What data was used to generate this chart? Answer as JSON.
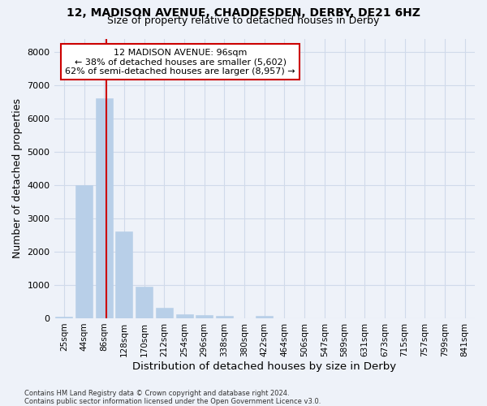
{
  "title_line1": "12, MADISON AVENUE, CHADDESDEN, DERBY, DE21 6HZ",
  "title_line2": "Size of property relative to detached houses in Derby",
  "xlabel": "Distribution of detached houses by size in Derby",
  "ylabel": "Number of detached properties",
  "bar_labels": [
    "25sqm",
    "44sqm",
    "86sqm",
    "128sqm",
    "170sqm",
    "212sqm",
    "254sqm",
    "296sqm",
    "338sqm",
    "380sqm",
    "422sqm",
    "464sqm",
    "506sqm",
    "547sqm",
    "589sqm",
    "631sqm",
    "673sqm",
    "715sqm",
    "757sqm",
    "799sqm",
    "841sqm"
  ],
  "bar_values": [
    55,
    4000,
    6600,
    2600,
    950,
    320,
    115,
    100,
    60,
    0,
    60,
    0,
    0,
    0,
    0,
    0,
    0,
    0,
    0,
    0,
    0
  ],
  "bar_color": "#b8cfe8",
  "bar_edgecolor": "#b8cfe8",
  "vline_pos": 2.1,
  "vline_color": "#cc0000",
  "ylim": [
    0,
    8400
  ],
  "yticks": [
    0,
    1000,
    2000,
    3000,
    4000,
    5000,
    6000,
    7000,
    8000
  ],
  "grid_color": "#d0daea",
  "background_color": "#eef2f9",
  "annotation_text": "12 MADISON AVENUE: 96sqm\n← 38% of detached houses are smaller (5,602)\n62% of semi-detached houses are larger (8,957) →",
  "annotation_box_facecolor": "#ffffff",
  "annotation_box_edgecolor": "#cc0000",
  "footer_text": "Contains HM Land Registry data © Crown copyright and database right 2024.\nContains public sector information licensed under the Open Government Licence v3.0."
}
